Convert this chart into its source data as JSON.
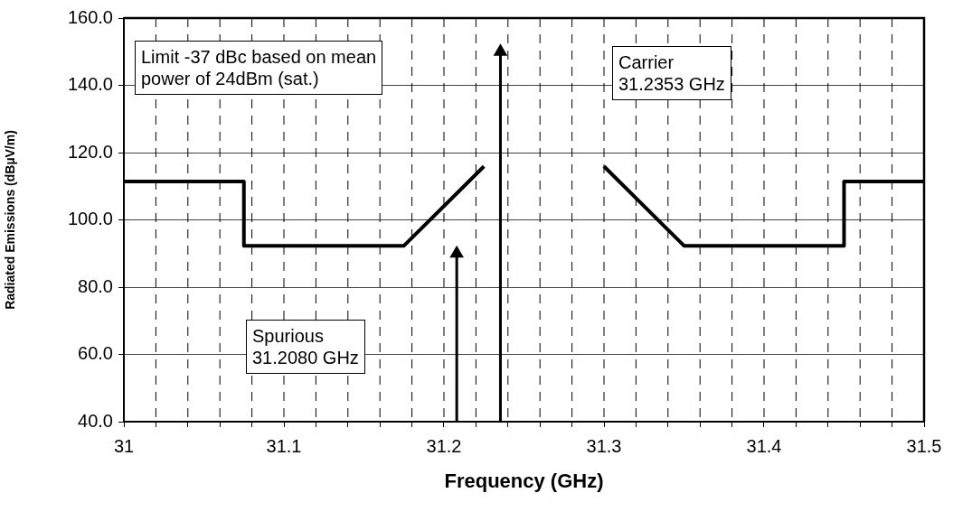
{
  "chart_data": {
    "type": "line",
    "xlabel": "Frequency (GHz)",
    "ylabel": "Radiated Emissions (dBµV/m)",
    "x": [
      31,
      31.075,
      31.075,
      31.175,
      31.225,
      31.26,
      31.3,
      31.35,
      31.45,
      31.45,
      31.5
    ],
    "series": [
      {
        "color": "#000000",
        "values": [
          111.4,
          111.4,
          92.3,
          92.3,
          115.9,
          null,
          115.9,
          92.3,
          92.3,
          111.4,
          111.4
        ]
      },
      {
        "type": "lollipop",
        "color": "#000000",
        "x": [
          31.2353
        ],
        "values": [
          150
        ],
        "marker": "triangle"
      },
      {
        "type": "lollipop",
        "color": "#000000",
        "x": [
          31.208
        ],
        "values": [
          90
        ],
        "marker": "triangle"
      }
    ],
    "xlim": [
      31,
      31.5
    ],
    "xticks": [
      31,
      {
        "value": 31.02,
        "label": null
      },
      {
        "value": 31.04,
        "label": null
      },
      {
        "value": 31.06,
        "label": null
      },
      {
        "value": 31.08,
        "label": null
      },
      31.1,
      {
        "value": 31.12,
        "label": null
      },
      {
        "value": 31.14,
        "label": null
      },
      {
        "value": 31.16,
        "label": null
      },
      {
        "value": 31.18,
        "label": null
      },
      31.2,
      {
        "value": 31.22,
        "label": null
      },
      {
        "value": 31.24,
        "label": null
      },
      {
        "value": 31.26,
        "label": null
      },
      {
        "value": 31.28,
        "label": null
      },
      31.3,
      {
        "value": 31.32,
        "label": null
      },
      {
        "value": 31.34,
        "label": null
      },
      {
        "value": 31.36,
        "label": null
      },
      {
        "value": 31.38,
        "label": null
      },
      31.4,
      {
        "value": 31.42,
        "label": null
      },
      {
        "value": 31.44,
        "label": null
      },
      {
        "value": 31.46,
        "label": null
      },
      {
        "value": 31.48,
        "label": null
      },
      31.5
    ],
    "ylim": [
      40,
      160
    ],
    "yticks": [
      {
        "value": 40,
        "label": "40.0"
      },
      {
        "value": 60,
        "label": "60.0"
      },
      {
        "value": 80,
        "label": "80.0"
      },
      {
        "value": 100,
        "label": "100.0"
      },
      {
        "value": 120,
        "label": "120.0"
      },
      {
        "value": 140,
        "label": "140.0"
      },
      {
        "value": 160,
        "label": "160.0"
      }
    ],
    "grid": true,
    "legend": false,
    "marker": "none",
    "line_style": "solid",
    "annotations": [
      "Limit -37 dBc based on mean\npower of 24dBm (sat.)",
      "Carrier\n31.2353 GHz",
      "Spurious\n31.2080 GHz"
    ]
  }
}
